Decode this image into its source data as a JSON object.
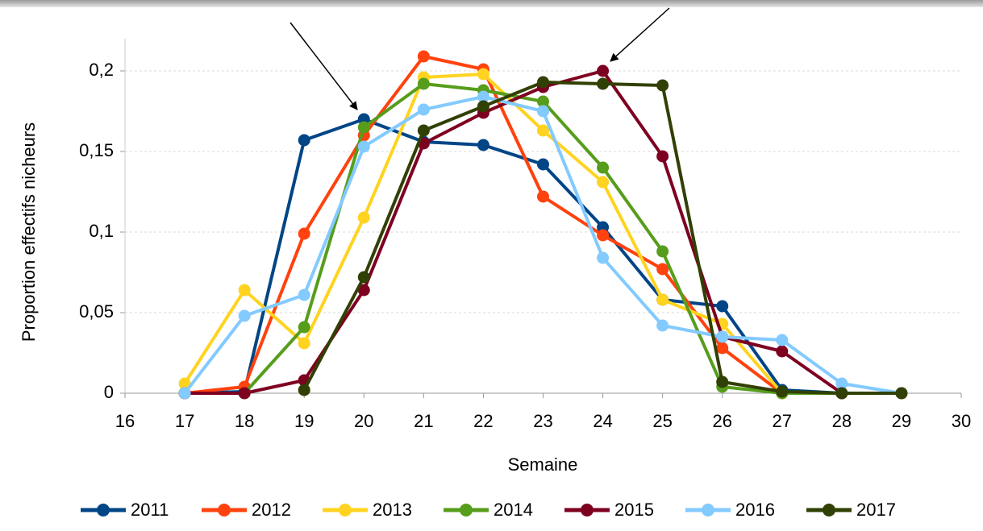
{
  "chart_data": {
    "type": "line",
    "x_label": "Semaine",
    "y_label": "Proportion effectifs nicheurs",
    "x": [
      17,
      18,
      19,
      20,
      21,
      22,
      23,
      24,
      25,
      26,
      27,
      28,
      29
    ],
    "xlim": [
      16,
      30
    ],
    "xticks": [
      16,
      17,
      18,
      19,
      20,
      21,
      22,
      23,
      24,
      25,
      26,
      27,
      28,
      29,
      30
    ],
    "ylim": [
      0,
      0.2
    ],
    "yticks": [
      0,
      {
        "value": 0.05,
        "label": "0,05"
      },
      {
        "value": 0.1,
        "label": "0,1"
      },
      {
        "value": 0.15,
        "label": "0,15"
      },
      {
        "value": 0.2,
        "label": "0,2"
      }
    ],
    "grid": true,
    "legend": "bottom",
    "series": [
      {
        "name": "2011",
        "color": "#004586",
        "values": [
          0,
          0.001,
          0.157,
          0.17,
          0.156,
          0.154,
          0.142,
          0.103,
          0.058,
          0.054,
          0.002,
          0,
          0
        ]
      },
      {
        "name": "2012",
        "color": "#ff420e",
        "values": [
          0,
          0.004,
          0.099,
          0.16,
          0.209,
          0.201,
          0.122,
          0.098,
          0.077,
          0.028,
          0,
          0,
          0
        ]
      },
      {
        "name": "2013",
        "color": "#ffd320",
        "values": [
          0.006,
          0.064,
          0.031,
          0.109,
          0.196,
          0.198,
          0.163,
          0.131,
          0.058,
          0.043,
          0,
          0,
          0
        ]
      },
      {
        "name": "2014",
        "color": "#579d1c",
        "values": [
          0,
          0,
          0.041,
          0.165,
          0.192,
          0.188,
          0.181,
          0.14,
          0.088,
          0.004,
          0,
          0,
          0
        ]
      },
      {
        "name": "2015",
        "color": "#7e0021",
        "values": [
          0,
          0,
          0.008,
          0.064,
          0.155,
          0.174,
          0.19,
          0.2,
          0.147,
          0.035,
          0.026,
          0,
          0
        ]
      },
      {
        "name": "2016",
        "color": "#83caff",
        "values": [
          0,
          0.048,
          0.061,
          0.153,
          0.176,
          0.184,
          0.175,
          0.084,
          0.042,
          0.035,
          0.033,
          0.006,
          0
        ]
      },
      {
        "name": "2017",
        "color": "#314004",
        "values": [
          null,
          null,
          0.002,
          0.072,
          0.163,
          0.178,
          0.193,
          0.192,
          0.191,
          0.007,
          0.001,
          0,
          0
        ]
      }
    ]
  }
}
